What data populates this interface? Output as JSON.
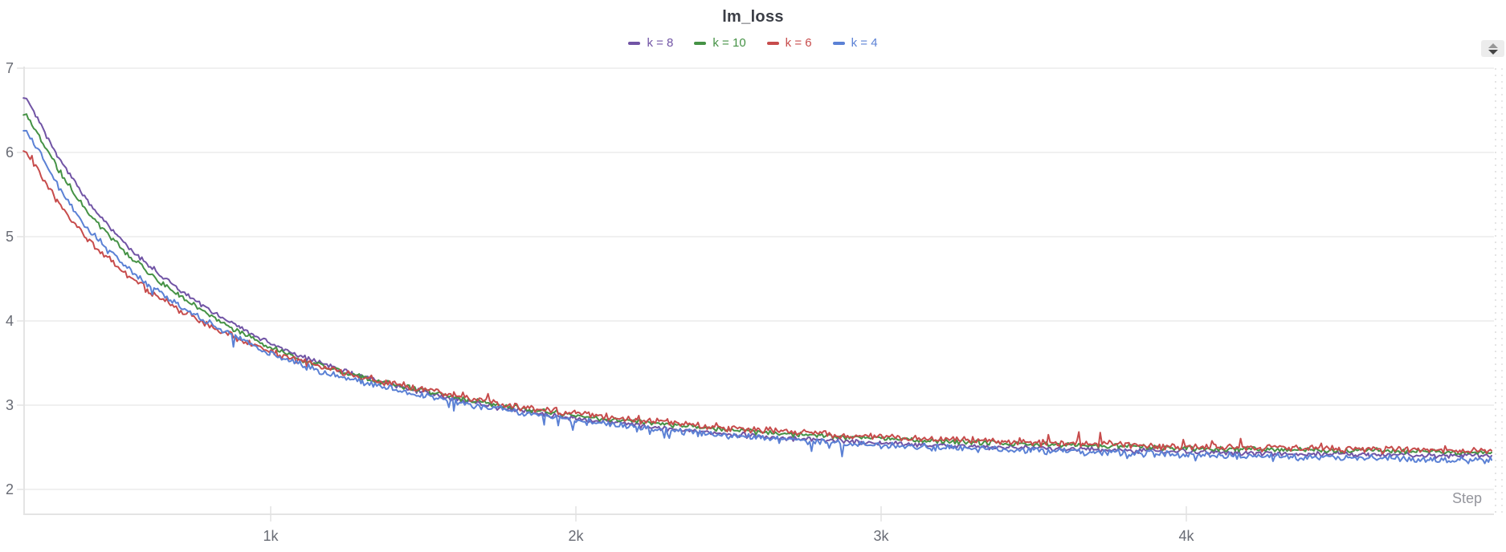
{
  "controls": {
    "stepper_icon": "up-down-arrows"
  },
  "chart_data": {
    "type": "line",
    "title": "lm_loss",
    "xlabel": "Step",
    "grid": "horizontal",
    "legend_position": "top-center",
    "background": "#ffffff",
    "x_axis": {
      "min": 190,
      "max": 5010,
      "ticks": [
        {
          "value": 1000,
          "label": "1k"
        },
        {
          "value": 2000,
          "label": "2k"
        },
        {
          "value": 3000,
          "label": "3k"
        },
        {
          "value": 4000,
          "label": "4k"
        }
      ]
    },
    "y_axis": {
      "min": 1.71,
      "max": 7.0,
      "ticks": [
        2,
        3,
        4,
        5,
        6,
        7
      ]
    },
    "steps": [
      200,
      300,
      400,
      500,
      600,
      700,
      800,
      900,
      1000,
      1100,
      1200,
      1300,
      1400,
      1500,
      1600,
      1700,
      1800,
      1900,
      2000,
      2100,
      2200,
      2300,
      2400,
      2500,
      2600,
      2700,
      2800,
      2900,
      3000,
      3100,
      3200,
      3300,
      3400,
      3500,
      3600,
      3700,
      3800,
      3900,
      4000,
      4100,
      4200,
      4300,
      4400,
      4500,
      4600,
      4700,
      4800,
      4900,
      5000
    ],
    "series": [
      {
        "name": "k8",
        "label": "k = 8",
        "color": "#7154a5",
        "noise": 0.025,
        "spike": 0,
        "values": [
          6.65,
          5.97,
          5.42,
          5.0,
          4.66,
          4.38,
          4.13,
          3.92,
          3.73,
          3.57,
          3.45,
          3.34,
          3.24,
          3.15,
          3.07,
          3.0,
          2.94,
          2.89,
          2.84,
          2.8,
          2.76,
          2.72,
          2.69,
          2.66,
          2.63,
          2.61,
          2.59,
          2.57,
          2.55,
          2.54,
          2.52,
          2.51,
          2.5,
          2.49,
          2.48,
          2.47,
          2.46,
          2.46,
          2.45,
          2.44,
          2.43,
          2.43,
          2.42,
          2.42,
          2.41,
          2.41,
          2.4,
          2.4,
          2.4
        ]
      },
      {
        "name": "k10",
        "label": "k = 10",
        "color": "#459245",
        "noise": 0.025,
        "spike": 0,
        "values": [
          6.46,
          5.82,
          5.3,
          4.9,
          4.57,
          4.3,
          4.06,
          3.86,
          3.68,
          3.54,
          3.43,
          3.33,
          3.25,
          3.17,
          3.1,
          3.03,
          2.97,
          2.92,
          2.88,
          2.84,
          2.8,
          2.77,
          2.74,
          2.71,
          2.68,
          2.66,
          2.64,
          2.62,
          2.6,
          2.58,
          2.57,
          2.56,
          2.55,
          2.54,
          2.53,
          2.52,
          2.51,
          2.5,
          2.49,
          2.48,
          2.48,
          2.47,
          2.47,
          2.46,
          2.46,
          2.45,
          2.45,
          2.44,
          2.44
        ]
      },
      {
        "name": "k6",
        "label": "k = 6",
        "color": "#c74c4c",
        "noise": 0.035,
        "spike": 1,
        "values": [
          6.02,
          5.42,
          4.97,
          4.63,
          4.36,
          4.13,
          3.94,
          3.77,
          3.63,
          3.52,
          3.42,
          3.33,
          3.25,
          3.18,
          3.11,
          3.05,
          2.99,
          2.94,
          2.9,
          2.86,
          2.83,
          2.79,
          2.76,
          2.73,
          2.71,
          2.68,
          2.66,
          2.64,
          2.63,
          2.61,
          2.6,
          2.58,
          2.57,
          2.56,
          2.55,
          2.54,
          2.53,
          2.52,
          2.51,
          2.5,
          2.5,
          2.49,
          2.49,
          2.48,
          2.48,
          2.47,
          2.47,
          2.46,
          2.46
        ]
      },
      {
        "name": "k4",
        "label": "k = 4",
        "color": "#5b81d5",
        "noise": 0.032,
        "spike": -1,
        "values": [
          6.27,
          5.62,
          5.1,
          4.73,
          4.43,
          4.18,
          3.97,
          3.78,
          3.61,
          3.48,
          3.37,
          3.28,
          3.19,
          3.11,
          3.04,
          2.98,
          2.92,
          2.87,
          2.82,
          2.78,
          2.74,
          2.7,
          2.67,
          2.64,
          2.61,
          2.59,
          2.56,
          2.54,
          2.52,
          2.51,
          2.49,
          2.48,
          2.47,
          2.46,
          2.45,
          2.44,
          2.43,
          2.42,
          2.41,
          2.4,
          2.4,
          2.39,
          2.38,
          2.38,
          2.37,
          2.36,
          2.36,
          2.35,
          2.35
        ]
      }
    ]
  }
}
